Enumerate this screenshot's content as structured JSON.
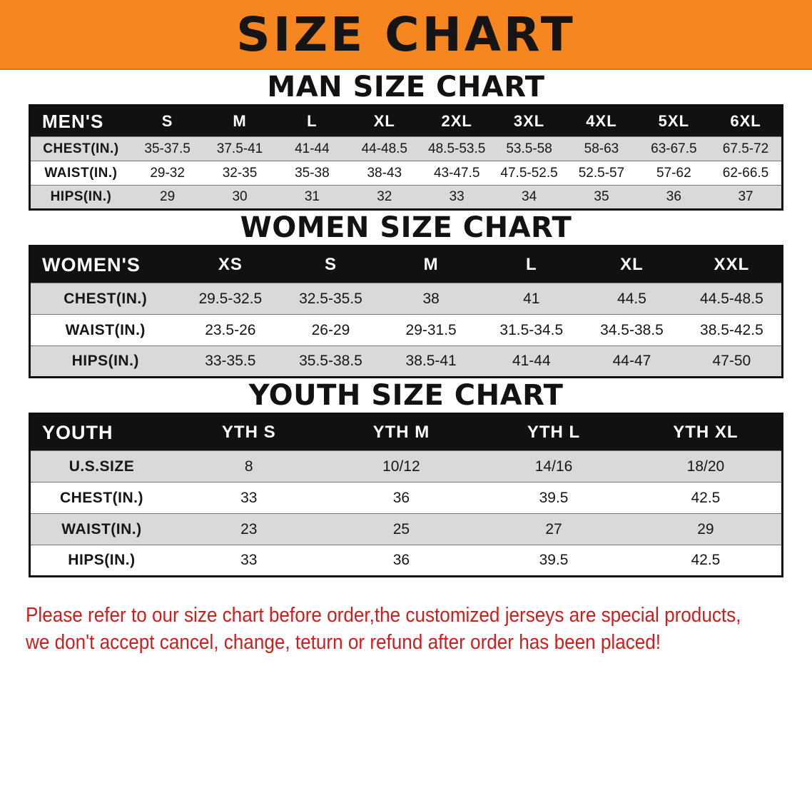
{
  "colors": {
    "banner-bg": "#f6861f",
    "table-header-bg": "#111111",
    "row-alt-bg": "#d9d9d9",
    "disclaimer-red": "#d11c1c"
  },
  "banner": {
    "title": "SIZE CHART"
  },
  "sections": [
    {
      "heading": "MAN SIZE CHART",
      "table": {
        "header": [
          "MEN'S",
          "S",
          "M",
          "L",
          "XL",
          "2XL",
          "3XL",
          "4XL",
          "5XL",
          "6XL"
        ],
        "rows": [
          [
            "CHEST(IN.)",
            "35-37.5",
            "37.5-41",
            "41-44",
            "44-48.5",
            "48.5-53.5",
            "53.5-58",
            "58-63",
            "63-67.5",
            "67.5-72"
          ],
          [
            "WAIST(IN.)",
            "29-32",
            "32-35",
            "35-38",
            "38-43",
            "43-47.5",
            "47.5-52.5",
            "52.5-57",
            "57-62",
            "62-66.5"
          ],
          [
            "HIPS(IN.)",
            "29",
            "30",
            "31",
            "32",
            "33",
            "34",
            "35",
            "36",
            "37"
          ]
        ]
      }
    },
    {
      "heading": "WOMEN SIZE CHART",
      "table": {
        "header": [
          "WOMEN'S",
          "XS",
          "S",
          "M",
          "L",
          "XL",
          "XXL"
        ],
        "rows": [
          [
            "CHEST(IN.)",
            "29.5-32.5",
            "32.5-35.5",
            "38",
            "41",
            "44.5",
            "44.5-48.5"
          ],
          [
            "WAIST(IN.)",
            "23.5-26",
            "26-29",
            "29-31.5",
            "31.5-34.5",
            "34.5-38.5",
            "38.5-42.5"
          ],
          [
            "HIPS(IN.)",
            "33-35.5",
            "35.5-38.5",
            "38.5-41",
            "41-44",
            "44-47",
            "47-50"
          ]
        ]
      }
    },
    {
      "heading": "YOUTH SIZE CHART",
      "table": {
        "header": [
          "YOUTH",
          "YTH S",
          "YTH M",
          "YTH L",
          "YTH XL"
        ],
        "rows": [
          [
            "U.S.SIZE",
            "8",
            "10/12",
            "14/16",
            "18/20"
          ],
          [
            "CHEST(IN.)",
            "33",
            "36",
            "39.5",
            "42.5"
          ],
          [
            "WAIST(IN.)",
            "23",
            "25",
            "27",
            "29"
          ],
          [
            "HIPS(IN.)",
            "33",
            "36",
            "39.5",
            "42.5"
          ]
        ]
      }
    }
  ],
  "disclaimer": {
    "lines": [
      "Please refer to our size chart before order,the customized jerseys are special products,",
      "we don't accept cancel, change, teturn or refund after order has been placed!"
    ]
  }
}
